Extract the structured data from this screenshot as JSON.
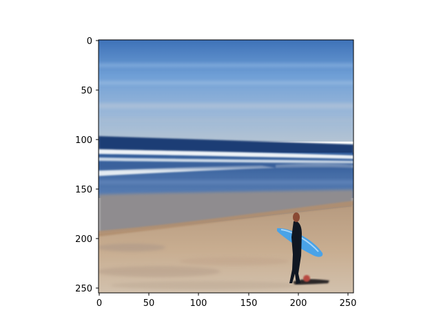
{
  "figure": {
    "image_description": "blurry beach scene: blue sky, white breaking waves, wet sand shoreline, a surfer in a dark wetsuit walking right while carrying a light-blue surfboard",
    "image_size": [
      256,
      256
    ],
    "colors": {
      "sky_top": "#3e72b8",
      "sky_mid": "#7fa9d9",
      "sky_low": "#a8bcd2",
      "ocean_dark": "#1f3c75",
      "wave_white": "#e8eef4",
      "water_blue": "#4d75b0",
      "sand_wet": "#8f8a86",
      "sand": "#c4a98a",
      "sand_light": "#d3c2ac",
      "surfboard": "#4aa3e8",
      "wetsuit": "#101722"
    }
  },
  "axes": {
    "x_ticks": [
      "0",
      "50",
      "100",
      "150",
      "200",
      "250"
    ],
    "y_ticks": [
      "0",
      "50",
      "100",
      "150",
      "200",
      "250"
    ]
  }
}
